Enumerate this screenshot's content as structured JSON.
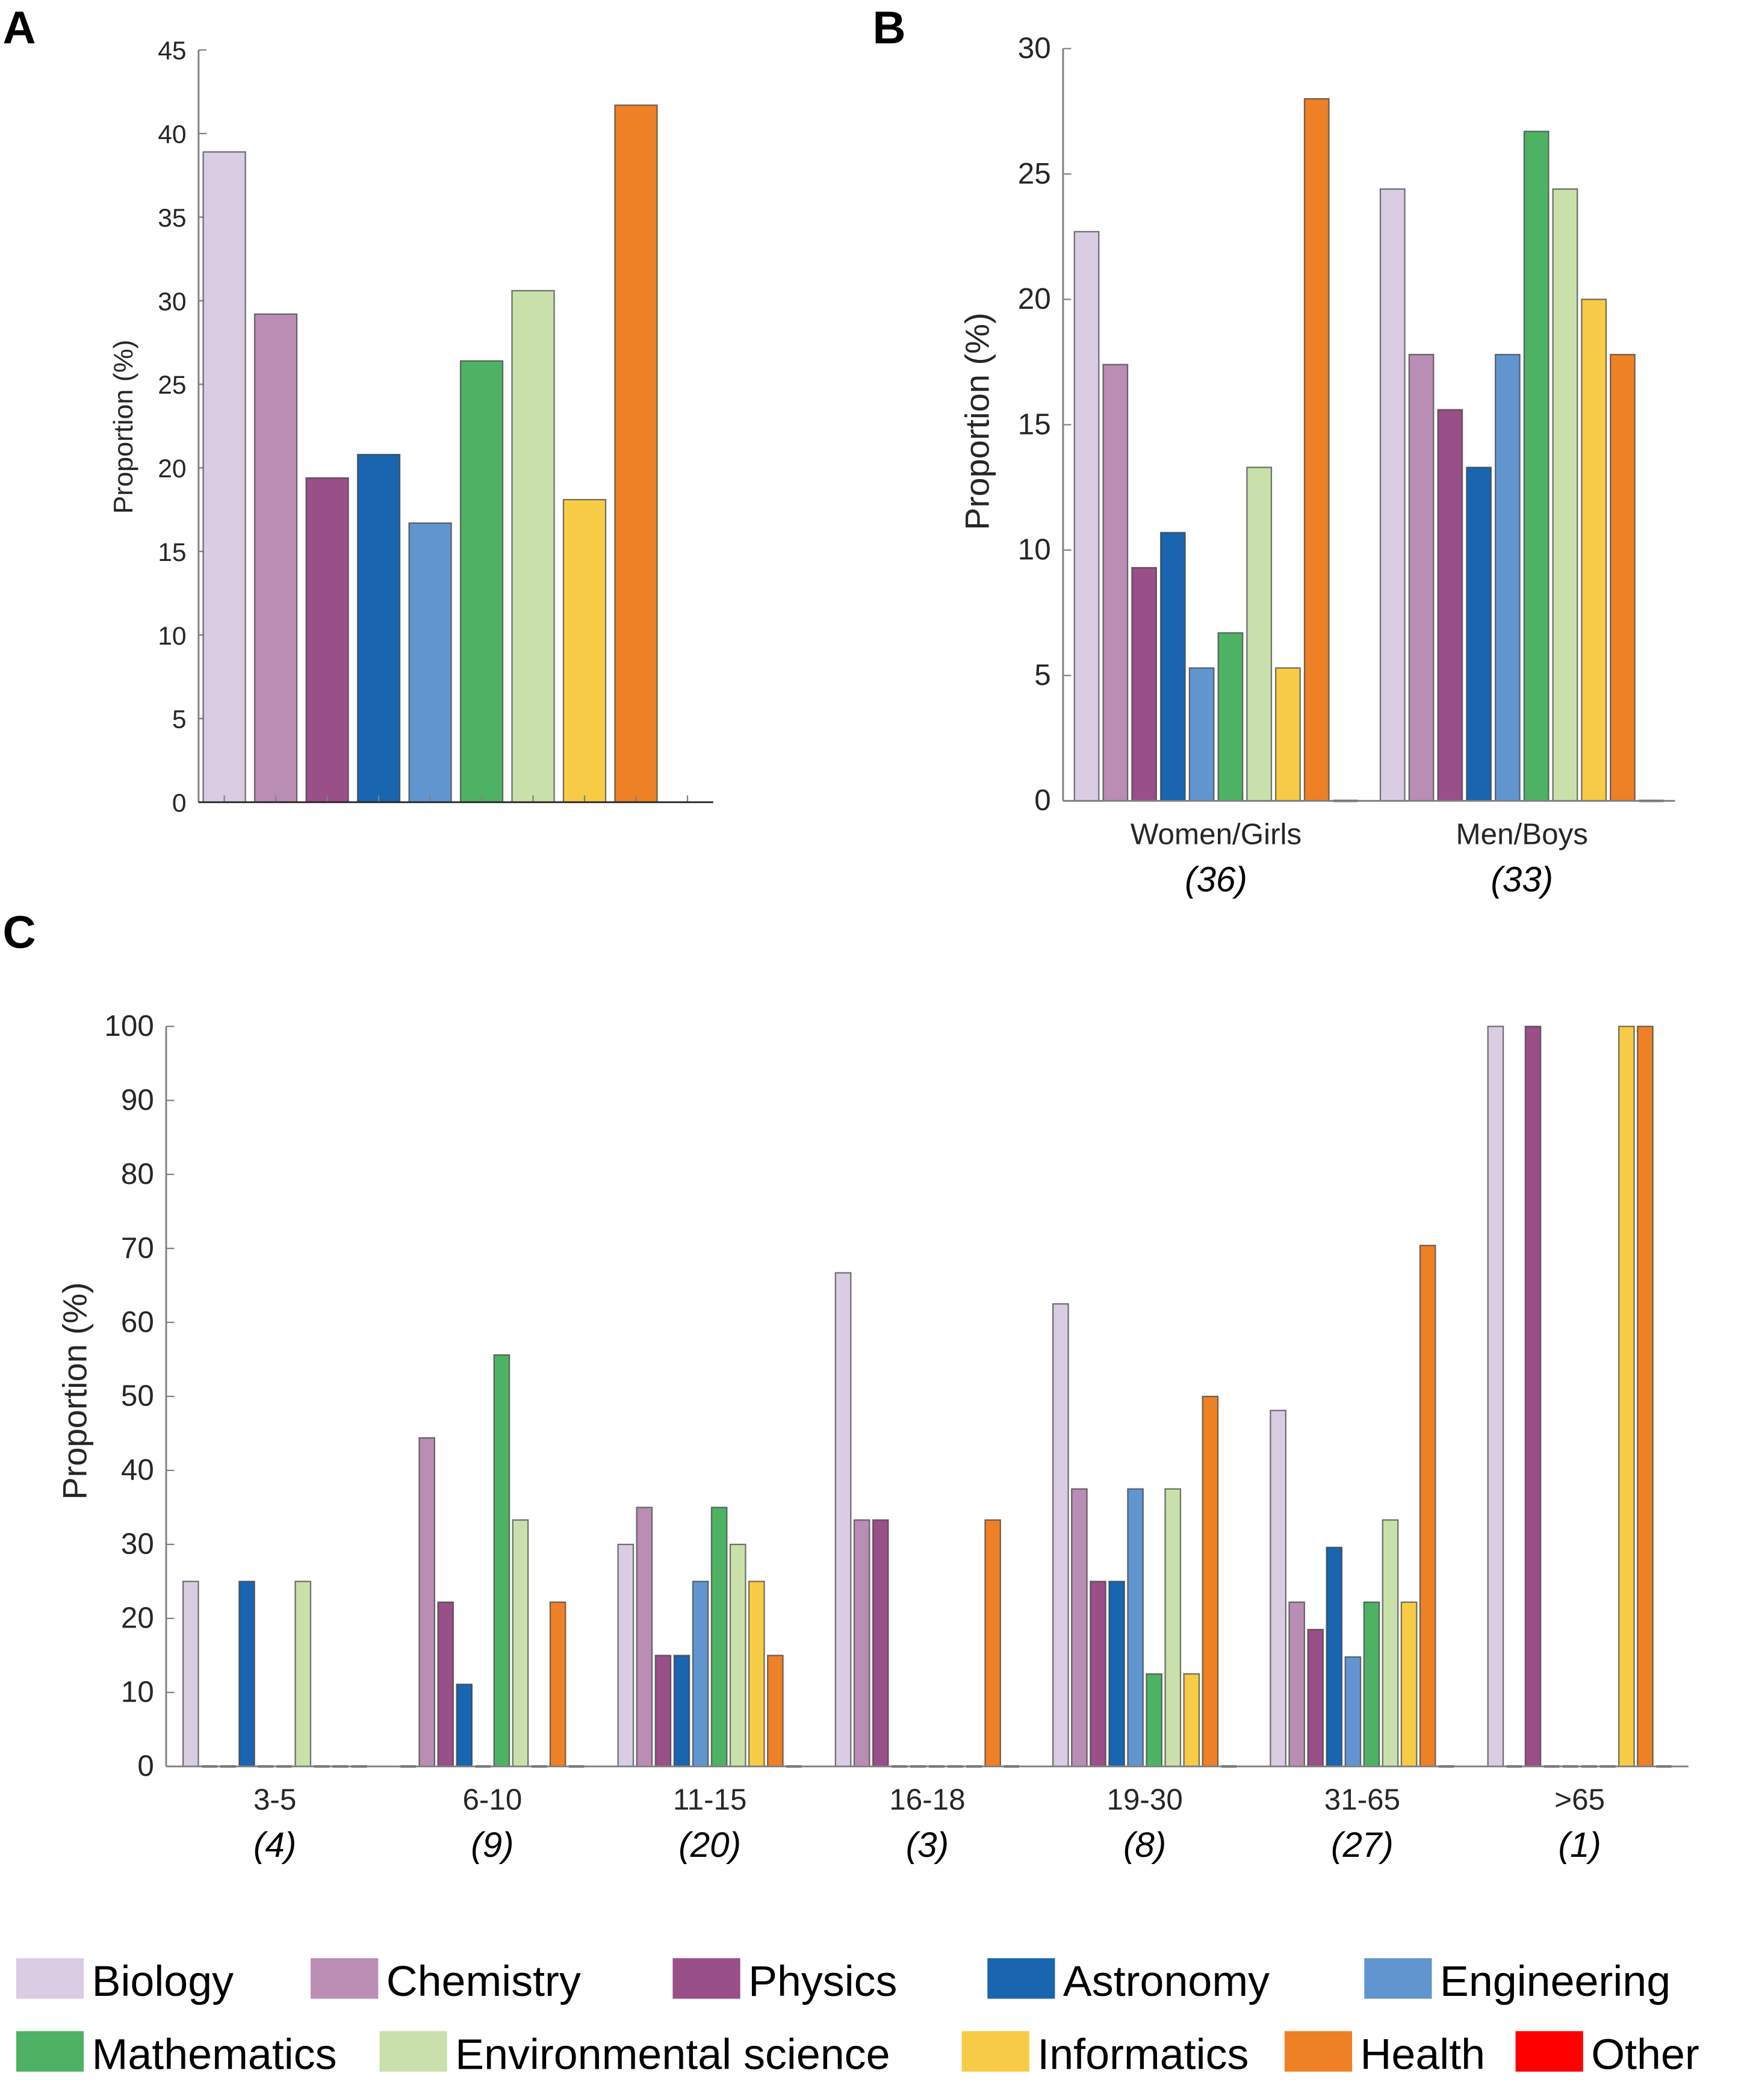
{
  "categories": [
    "Biology",
    "Chemistry",
    "Physics",
    "Astronomy",
    "Engineering",
    "Mathematics",
    "Environmental science",
    "Informatics",
    "Health",
    "Other"
  ],
  "colors": {
    "Biology": "#d9cce3",
    "Chemistry": "#ba8db4",
    "Physics": "#994f88",
    "Astronomy": "#1965b0",
    "Engineering": "#6195cf",
    "Mathematics": "#4eb265",
    "Environmental science": "#cae0ab",
    "Informatics": "#f7cb45",
    "Health": "#ee8026",
    "Other": "#ff0000"
  },
  "panels": {
    "A": {
      "letter": "A"
    },
    "B": {
      "letter": "B"
    },
    "C": {
      "letter": "C"
    }
  },
  "chart_data": [
    {
      "id": "A",
      "type": "bar",
      "title": "",
      "xlabel": "",
      "ylabel": "Proportion (%)",
      "ylim": [
        0,
        45
      ],
      "yticks": [
        0,
        5,
        10,
        15,
        20,
        25,
        30,
        35,
        40,
        45
      ],
      "grid": false,
      "categories": [
        "Biology",
        "Chemistry",
        "Physics",
        "Astronomy",
        "Engineering",
        "Mathematics",
        "Environmental science",
        "Informatics",
        "Health",
        "Other"
      ],
      "values": [
        38.9,
        29.2,
        19.4,
        20.8,
        16.7,
        26.4,
        30.6,
        18.1,
        41.7,
        0
      ]
    },
    {
      "id": "B",
      "type": "bar",
      "title": "",
      "xlabel": "",
      "ylabel": "Proportion (%)",
      "ylim": [
        0,
        30
      ],
      "yticks": [
        0,
        5,
        10,
        15,
        20,
        25,
        30
      ],
      "grid": false,
      "groups": [
        {
          "label": "Women/Girls",
          "n": "(36)"
        },
        {
          "label": "Men/Boys",
          "n": "(33)"
        }
      ],
      "series": [
        {
          "name": "Biology",
          "values": [
            22.7,
            24.4
          ]
        },
        {
          "name": "Chemistry",
          "values": [
            17.4,
            17.8
          ]
        },
        {
          "name": "Physics",
          "values": [
            9.3,
            15.6
          ]
        },
        {
          "name": "Astronomy",
          "values": [
            10.7,
            13.3
          ]
        },
        {
          "name": "Engineering",
          "values": [
            5.3,
            17.8
          ]
        },
        {
          "name": "Mathematics",
          "values": [
            6.7,
            26.7
          ]
        },
        {
          "name": "Environmental science",
          "values": [
            13.3,
            24.4
          ]
        },
        {
          "name": "Informatics",
          "values": [
            5.3,
            20.0
          ]
        },
        {
          "name": "Health",
          "values": [
            28.0,
            17.8
          ]
        },
        {
          "name": "Other",
          "values": [
            0,
            0
          ]
        }
      ]
    },
    {
      "id": "C",
      "type": "bar",
      "title": "",
      "xlabel": "",
      "ylabel": "Proportion (%)",
      "ylim": [
        0,
        100
      ],
      "yticks": [
        0,
        10,
        20,
        30,
        40,
        50,
        60,
        70,
        80,
        90,
        100
      ],
      "grid": false,
      "groups": [
        {
          "label": "3-5",
          "n": "(4)"
        },
        {
          "label": "6-10",
          "n": "(9)"
        },
        {
          "label": "11-15",
          "n": "(20)"
        },
        {
          "label": "16-18",
          "n": "(3)"
        },
        {
          "label": "19-30",
          "n": "(8)"
        },
        {
          "label": "31-65",
          "n": "(27)"
        },
        {
          "label": ">65",
          "n": "(1)"
        }
      ],
      "series": [
        {
          "name": "Biology",
          "values": [
            25,
            0,
            30,
            66.7,
            62.5,
            48.1,
            100
          ]
        },
        {
          "name": "Chemistry",
          "values": [
            0,
            44.4,
            35,
            33.3,
            37.5,
            22.2,
            0
          ]
        },
        {
          "name": "Physics",
          "values": [
            0,
            22.2,
            15,
            33.3,
            25,
            18.5,
            100
          ]
        },
        {
          "name": "Astronomy",
          "values": [
            25,
            11.1,
            15,
            0,
            25,
            29.6,
            0
          ]
        },
        {
          "name": "Engineering",
          "values": [
            0,
            0,
            25,
            0,
            37.5,
            14.8,
            0
          ]
        },
        {
          "name": "Mathematics",
          "values": [
            0,
            55.6,
            35,
            0,
            12.5,
            22.2,
            0
          ]
        },
        {
          "name": "Environmental science",
          "values": [
            25,
            33.3,
            30,
            0,
            37.5,
            33.3,
            0
          ]
        },
        {
          "name": "Informatics",
          "values": [
            0,
            0,
            25,
            0,
            12.5,
            22.2,
            100
          ]
        },
        {
          "name": "Health",
          "values": [
            0,
            22.2,
            15,
            33.3,
            50,
            70.4,
            100
          ]
        },
        {
          "name": "Other",
          "values": [
            0,
            0,
            0,
            0,
            0,
            0,
            0
          ]
        }
      ]
    }
  ],
  "legend": {
    "placement": "bottom",
    "rows": [
      [
        "Biology",
        "Chemistry",
        "Physics",
        "Astronomy",
        "Engineering"
      ],
      [
        "Mathematics",
        "Environmental science",
        "Informatics",
        "Health",
        "Other"
      ]
    ]
  }
}
